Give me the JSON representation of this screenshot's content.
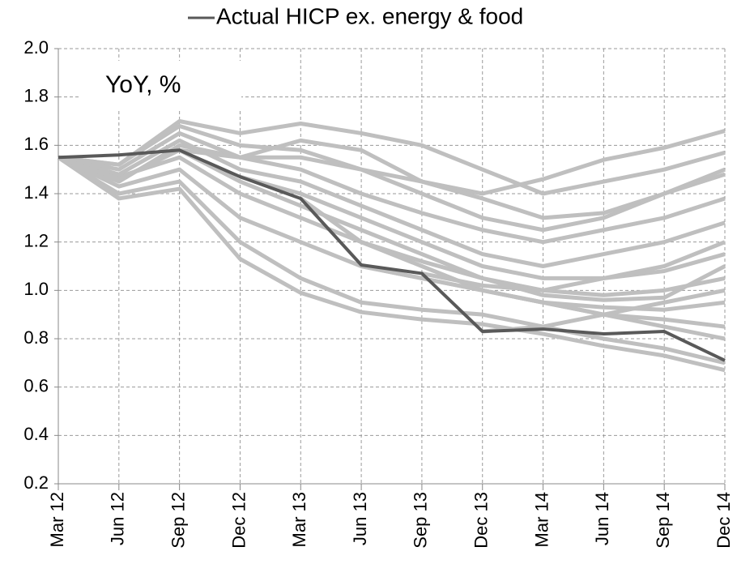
{
  "chart_data": {
    "type": "line",
    "annotation": "YoY, %",
    "categories": [
      "Mar 12",
      "Jun 12",
      "Sep 12",
      "Dec 12",
      "Mar 13",
      "Jun 13",
      "Sep 13",
      "Dec 13",
      "Mar 14",
      "Jun 14",
      "Sep 14",
      "Dec 14"
    ],
    "ylim": [
      0.2,
      2.0
    ],
    "yticks": [
      0.2,
      0.4,
      0.6,
      0.8,
      {
        "value": 1,
        "label": "1.0"
      },
      1.2,
      1.4,
      1.6,
      1.8,
      {
        "value": 2,
        "label": "2.0"
      }
    ],
    "grid": true,
    "series": [
      {
        "color": "#bfbfbf",
        "values": [
          1.55,
          1.52,
          1.7,
          1.65,
          1.69,
          1.65,
          1.6,
          1.5,
          1.4,
          1.45,
          1.5,
          1.57
        ]
      },
      {
        "color": "#bfbfbf",
        "values": [
          1.55,
          1.38,
          1.42,
          1.13,
          0.99,
          0.91,
          0.88,
          0.86,
          0.82,
          0.77,
          0.73,
          0.67
        ]
      },
      {
        "color": "#bfbfbf",
        "values": [
          1.55,
          1.45,
          1.6,
          1.55,
          1.62,
          1.58,
          1.45,
          1.4,
          1.46,
          1.54,
          1.59,
          1.66
        ]
      },
      {
        "color": "#bfbfbf",
        "values": [
          1.55,
          1.4,
          1.45,
          1.2,
          1.05,
          0.95,
          0.92,
          0.9,
          0.85,
          0.8,
          0.76,
          0.7
        ]
      },
      {
        "color": "#bfbfbf",
        "values": [
          1.55,
          1.47,
          1.55,
          1.4,
          1.3,
          1.2,
          1.12,
          1.05,
          1.0,
          0.98,
          1.0,
          1.05
        ]
      },
      {
        "color": "#bfbfbf",
        "values": [
          1.55,
          1.5,
          1.65,
          1.55,
          1.5,
          1.4,
          1.32,
          1.25,
          1.2,
          1.25,
          1.3,
          1.38
        ]
      },
      {
        "color": "#bfbfbf",
        "values": [
          1.55,
          1.43,
          1.5,
          1.3,
          1.2,
          1.1,
          1.05,
          1.0,
          0.95,
          0.9,
          0.88,
          0.85
        ]
      },
      {
        "color": "#bfbfbf",
        "values": [
          1.55,
          1.48,
          1.62,
          1.5,
          1.45,
          1.35,
          1.25,
          1.15,
          1.1,
          1.15,
          1.2,
          1.28
        ]
      },
      {
        "color": "#bfbfbf",
        "values": [
          null,
          null,
          1.58,
          1.55,
          1.55,
          1.5,
          1.4,
          1.3,
          1.25,
          1.3,
          1.4,
          1.5
        ]
      },
      {
        "color": "#bfbfbf",
        "values": [
          null,
          null,
          null,
          1.47,
          1.4,
          1.3,
          1.2,
          1.1,
          1.05,
          1.05,
          1.08,
          1.15
        ]
      },
      {
        "color": "#bfbfbf",
        "values": [
          null,
          null,
          null,
          null,
          1.38,
          1.2,
          1.1,
          1.0,
          0.95,
          0.93,
          0.92,
          0.95
        ]
      },
      {
        "color": "#bfbfbf",
        "values": [
          null,
          null,
          null,
          null,
          null,
          1.1,
          1.05,
          1.0,
          0.95,
          0.9,
          0.85,
          0.8
        ]
      },
      {
        "color": "#bfbfbf",
        "values": [
          null,
          null,
          null,
          null,
          null,
          null,
          1.07,
          1.02,
          1.0,
          1.05,
          1.1,
          1.2
        ]
      },
      {
        "color": "#bfbfbf",
        "values": [
          null,
          null,
          null,
          null,
          null,
          null,
          null,
          0.83,
          0.85,
          0.9,
          0.95,
          1.0
        ]
      },
      {
        "color": "#bfbfbf",
        "values": [
          1.55,
          1.52,
          1.68,
          1.6,
          1.58,
          1.5,
          1.45,
          1.38,
          1.3,
          1.32,
          1.4,
          1.48
        ]
      },
      {
        "color": "#bfbfbf",
        "values": [
          1.55,
          1.46,
          1.58,
          1.45,
          1.35,
          1.25,
          1.15,
          1.05,
          0.98,
          0.96,
          0.97,
          1.1
        ]
      },
      {
        "name": "Actual HICP ex. energy & food",
        "color": "#595959",
        "values": [
          1.55,
          1.56,
          1.58,
          1.47,
          1.38,
          1.105,
          1.07,
          0.83,
          0.84,
          0.82,
          0.83,
          0.71
        ]
      }
    ]
  }
}
